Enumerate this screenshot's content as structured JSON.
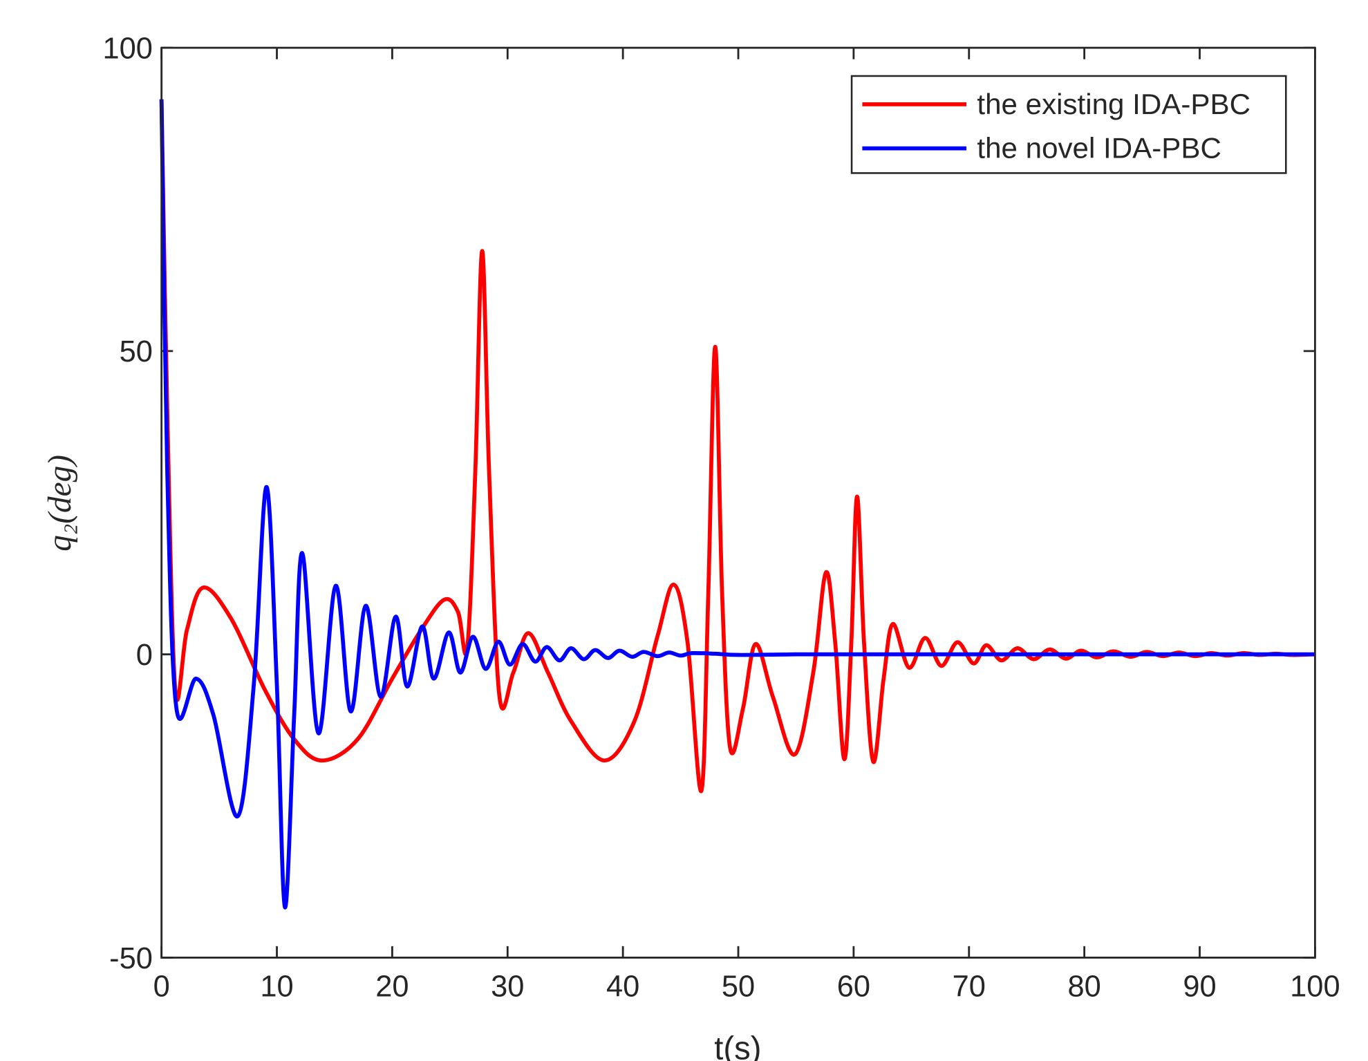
{
  "chart_data": {
    "type": "line",
    "xlabel": "t(s)",
    "ylabel": "q₂(deg)",
    "xlim": [
      0,
      100
    ],
    "ylim": [
      -50,
      100
    ],
    "xticks": [
      0,
      10,
      20,
      30,
      40,
      50,
      60,
      70,
      80,
      90,
      100
    ],
    "yticks": [
      -50,
      0,
      50,
      100
    ],
    "grid": false,
    "legend": "northeast",
    "series": [
      {
        "name": "the existing IDA-PBC",
        "color": "#ff0000",
        "x": [
          0,
          0.5,
          1.2,
          2.2,
          3.6,
          6,
          9,
          11.5,
          13.9,
          17,
          20,
          22.5,
          24.5,
          25.7,
          26.5,
          27.2,
          27.8,
          28.4,
          29.3,
          30.5,
          31.8,
          33.5,
          35.5,
          38.4,
          41,
          43,
          44.4,
          45.6,
          46.8,
          47.4,
          48,
          48.6,
          49.3,
          50.4,
          51.5,
          53,
          54.9,
          56.5,
          57.6,
          58.4,
          59.2,
          59.8,
          60.3,
          60.9,
          61.7,
          62.6,
          63.4,
          64.8,
          66.2,
          67.6,
          69,
          70.4,
          71.5,
          72.8,
          74.2,
          75.6,
          77,
          78.4,
          79.7,
          81.1,
          82.5,
          84,
          85.4,
          86.8,
          88.2,
          89.6,
          91,
          92.4,
          93.8,
          95.2,
          96.6,
          98,
          100
        ],
        "values": [
          91.5,
          40,
          -6,
          4,
          11,
          6,
          -6,
          -14,
          -17.5,
          -14,
          -4,
          4,
          9,
          7,
          1,
          30,
          66.5,
          30,
          -7,
          -3,
          3.5,
          -3,
          -11,
          -17.5,
          -11,
          3,
          11.5,
          2,
          -22.5,
          10,
          50.7,
          10,
          -15.5,
          -9,
          1.7,
          -7,
          -16.5,
          -3,
          13.5,
          2,
          -17.3,
          2,
          26,
          2,
          -17.7,
          -4,
          5,
          -2.2,
          2.7,
          -1.9,
          2,
          -1.5,
          1.5,
          -1,
          1,
          -0.8,
          0.8,
          -0.7,
          0.6,
          -0.5,
          0.5,
          -0.4,
          0.4,
          -0.3,
          0.3,
          -0.3,
          0.2,
          -0.2,
          0.2,
          -0.1,
          0.1,
          -0.1,
          0
        ]
      },
      {
        "name": "the novel IDA-PBC",
        "color": "#0000ff",
        "x": [
          0,
          0.5,
          1.3,
          3,
          4.5,
          6.6,
          8,
          9.1,
          10,
          10.7,
          11.5,
          12.2,
          13.6,
          15.1,
          16.4,
          17.7,
          19,
          20.3,
          21.3,
          22.6,
          23.6,
          24.9,
          25.9,
          27,
          28.1,
          29.2,
          30.2,
          31.3,
          32.4,
          33.4,
          34.5,
          35.5,
          36.6,
          37.6,
          38.7,
          39.7,
          40.8,
          41.8,
          43,
          44,
          45,
          46,
          48,
          50,
          55,
          60,
          70,
          80,
          90,
          100
        ],
        "values": [
          91.5,
          30,
          -9,
          -4,
          -10,
          -26.7,
          -5,
          27.6,
          -5,
          -41.7,
          -10,
          16.7,
          -13,
          11.3,
          -9.4,
          8,
          -7,
          6.2,
          -5.3,
          4.6,
          -4,
          3.6,
          -3,
          2.9,
          -2.4,
          2.1,
          -1.7,
          1.7,
          -1.2,
          1.2,
          -1,
          1,
          -0.8,
          0.7,
          -0.6,
          0.6,
          -0.4,
          0.4,
          -0.3,
          0.3,
          -0.2,
          0.2,
          0.1,
          -0.1,
          0,
          0,
          0,
          0,
          0,
          0
        ]
      }
    ]
  }
}
